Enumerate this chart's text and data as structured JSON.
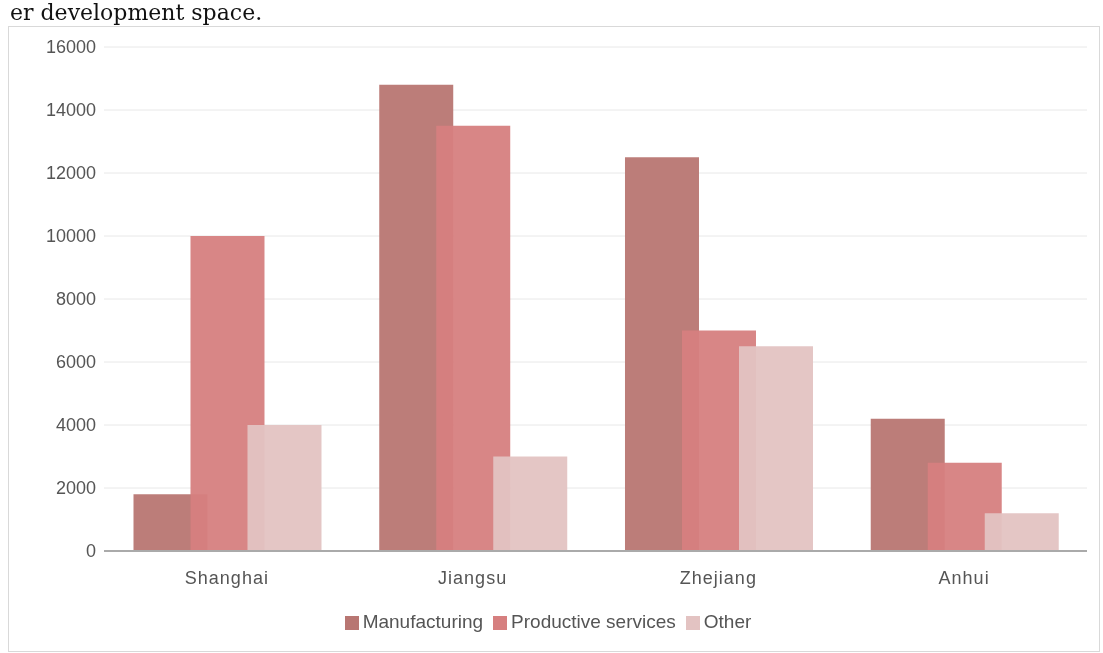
{
  "chart_data": {
    "type": "bar",
    "categories": [
      "Shanghai",
      "Jiangsu",
      "Zhejiang",
      "Anhui"
    ],
    "series": [
      {
        "name": "Manufacturing",
        "color": "#b87672",
        "values": [
          1800,
          14800,
          12500,
          4200
        ]
      },
      {
        "name": "Productive services",
        "color": "#d67f7f",
        "values": [
          10000,
          13500,
          7000,
          2800
        ]
      },
      {
        "name": "Other",
        "color": "#e3c3c2",
        "values": [
          4000,
          3000,
          6500,
          1200
        ]
      }
    ],
    "ylim": [
      0,
      16000
    ],
    "yticks": [
      0,
      2000,
      4000,
      6000,
      8000,
      10000,
      12000,
      14000,
      16000
    ],
    "grid": "y",
    "legend": "bottom",
    "annotations": [
      "er development space."
    ]
  }
}
